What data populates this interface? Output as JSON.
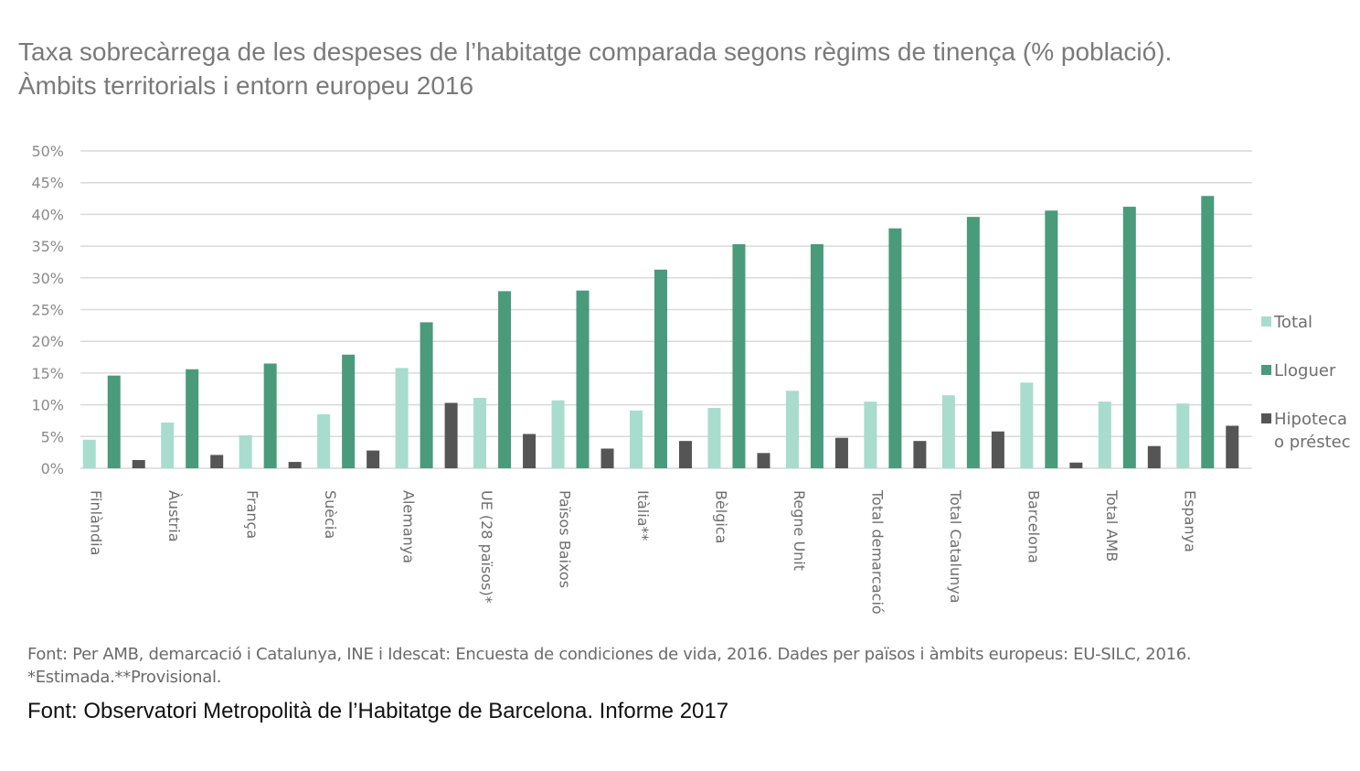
{
  "title": {
    "line1": "Taxa sobrecàrrega de les despeses de l’habitatge comparada segons règims de tinença (% població).",
    "line2": "Àmbits territorials i entorn europeu 2016"
  },
  "notes": {
    "line1": "Font: Per AMB, demarcació i Catalunya, INE i Idescat: Encuesta de condiciones de vida, 2016. Dades per països i àmbits europeus: EU-SILC, 2016.",
    "line2": "*Estimada.**Provisional."
  },
  "source": "Font: Observatori Metropolità de l’Habitatge de Barcelona. Informe 2017",
  "chart_data": {
    "type": "bar",
    "categories": [
      "Finlàndia",
      "Àustria",
      "França",
      "Suècia",
      "Alemanya",
      "UE (28 països)*",
      "Països Baixos",
      "Itàlia**",
      "Bèlgica",
      "Regne Unit",
      "Total demarcació",
      "Total Catalunya",
      "Barcelona",
      "Total AMB",
      "Espanya"
    ],
    "series": [
      {
        "name": "Total",
        "color": "#a8dccd",
        "values": [
          4.5,
          7.2,
          5.2,
          8.5,
          15.8,
          11.1,
          10.7,
          9.1,
          9.5,
          12.2,
          10.5,
          11.5,
          13.5,
          10.5,
          10.2
        ]
      },
      {
        "name": "Lloguer",
        "color": "#4a9a7c",
        "values": [
          14.6,
          15.6,
          16.5,
          17.9,
          23.0,
          27.9,
          28.0,
          31.3,
          35.3,
          35.3,
          37.8,
          39.6,
          40.6,
          41.2,
          42.9
        ]
      },
      {
        "name": "Hipoteca o préstec",
        "legend_lines": [
          "Hipoteca",
          "o préstec"
        ],
        "color": "#555555",
        "values": [
          1.3,
          2.1,
          1.0,
          2.8,
          10.3,
          5.4,
          3.1,
          4.3,
          2.4,
          4.8,
          4.3,
          5.8,
          0.9,
          3.5,
          6.7
        ]
      }
    ],
    "yticks": [
      "0%",
      "5%",
      "10%",
      "15%",
      "20%",
      "25%",
      "30%",
      "35%",
      "40%",
      "45%",
      "50%"
    ],
    "ylim": [
      0,
      50
    ],
    "grid": true,
    "legend_position": "right",
    "gridline_color": "#d9d9d9"
  }
}
